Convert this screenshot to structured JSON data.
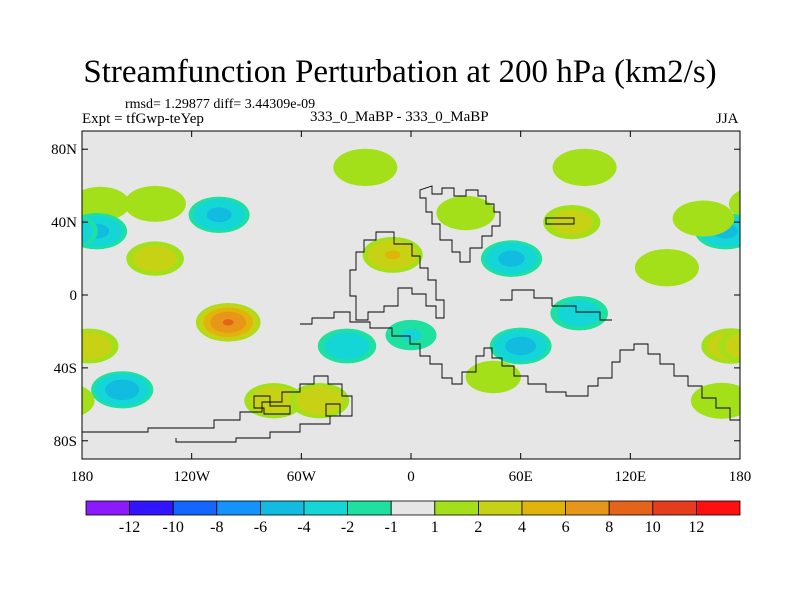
{
  "chart_data": {
    "type": "contour-map",
    "title": "Streamfunction Perturbation at 200 hPa (km2/s)",
    "stats": "rmsd= 1.29877 diff= 3.44309e-09",
    "left_label": "Expt = tfGwp-teYep",
    "center_label": "333_0_MaBP - 333_0_MaBP",
    "right_label": "JJA",
    "x_range": [
      -180,
      180
    ],
    "y_range": [
      -90,
      90
    ],
    "x_ticks": [
      {
        "value": -180,
        "label": "180"
      },
      {
        "value": -120,
        "label": "120W"
      },
      {
        "value": -60,
        "label": "60W"
      },
      {
        "value": 0,
        "label": "0"
      },
      {
        "value": 60,
        "label": "60E"
      },
      {
        "value": 120,
        "label": "120E"
      },
      {
        "value": 180,
        "label": "180"
      }
    ],
    "y_ticks": [
      {
        "value": 80,
        "label": "80N"
      },
      {
        "value": 40,
        "label": "40N"
      },
      {
        "value": 0,
        "label": "0"
      },
      {
        "value": -40,
        "label": "40S"
      },
      {
        "value": -80,
        "label": "80S"
      }
    ],
    "colorbar": {
      "colors": [
        "#8c1aff",
        "#3314ff",
        "#1466ff",
        "#1493ff",
        "#12bbe0",
        "#14d6d6",
        "#1ee0a0",
        "#e6e6e6",
        "#a3e01a",
        "#c8d214",
        "#e0b40a",
        "#e8961a",
        "#e6641a",
        "#e63c1e",
        "#ff1010"
      ],
      "boundaries": [
        {
          "index": 1,
          "label": "-12"
        },
        {
          "index": 2,
          "label": "-10"
        },
        {
          "index": 3,
          "label": "-8"
        },
        {
          "index": 4,
          "label": "-6"
        },
        {
          "index": 5,
          "label": "-4"
        },
        {
          "index": 6,
          "label": "-2"
        },
        {
          "index": 7,
          "label": "-1"
        },
        {
          "index": 8,
          "label": "1"
        },
        {
          "index": 9,
          "label": "2"
        },
        {
          "index": 10,
          "label": "4"
        },
        {
          "index": 11,
          "label": "6"
        },
        {
          "index": 12,
          "label": "8"
        },
        {
          "index": 13,
          "label": "10"
        },
        {
          "index": 14,
          "label": "12"
        }
      ]
    },
    "anomalies": [
      {
        "lon": 95,
        "lat": 70,
        "max": 1.8
      },
      {
        "lon": -25,
        "lat": 70,
        "max": 1.8
      },
      {
        "lon": 30,
        "lat": 45,
        "max": 1.6
      },
      {
        "lon": -140,
        "lat": 50,
        "max": 1.7
      },
      {
        "lon": -170,
        "lat": 50,
        "max": 1.6
      },
      {
        "lon": -105,
        "lat": 44,
        "max": -4.6
      },
      {
        "lon": -172,
        "lat": 35,
        "max": -4.6
      },
      {
        "lon": 172,
        "lat": 35,
        "max": -4.6
      },
      {
        "lon": 88,
        "lat": 40,
        "max": 3.2
      },
      {
        "lon": 160,
        "lat": 42,
        "max": 1.7
      },
      {
        "lon": -140,
        "lat": 20,
        "max": 3.3
      },
      {
        "lon": -10,
        "lat": 22,
        "max": 4.2
      },
      {
        "lon": 55,
        "lat": 20,
        "max": -4.7
      },
      {
        "lon": 140,
        "lat": 15,
        "max": 1.8
      },
      {
        "lon": -100,
        "lat": -15,
        "max": 8.2
      },
      {
        "lon": 0,
        "lat": -22,
        "max": -2.2
      },
      {
        "lon": -35,
        "lat": -28,
        "max": -3.5
      },
      {
        "lon": 60,
        "lat": -28,
        "max": -5.0
      },
      {
        "lon": 92,
        "lat": -10,
        "max": -3.3
      },
      {
        "lon": 175,
        "lat": -28,
        "max": 3.8
      },
      {
        "lon": -176,
        "lat": -28,
        "max": 3.5
      },
      {
        "lon": -158,
        "lat": -52,
        "max": -5.3
      },
      {
        "lon": -75,
        "lat": -58,
        "max": 3.8
      },
      {
        "lon": -50,
        "lat": -58,
        "max": 3.8
      },
      {
        "lon": 170,
        "lat": -58,
        "max": 1.7
      },
      {
        "lon": 45,
        "lat": -45,
        "max": 1.5
      }
    ]
  }
}
